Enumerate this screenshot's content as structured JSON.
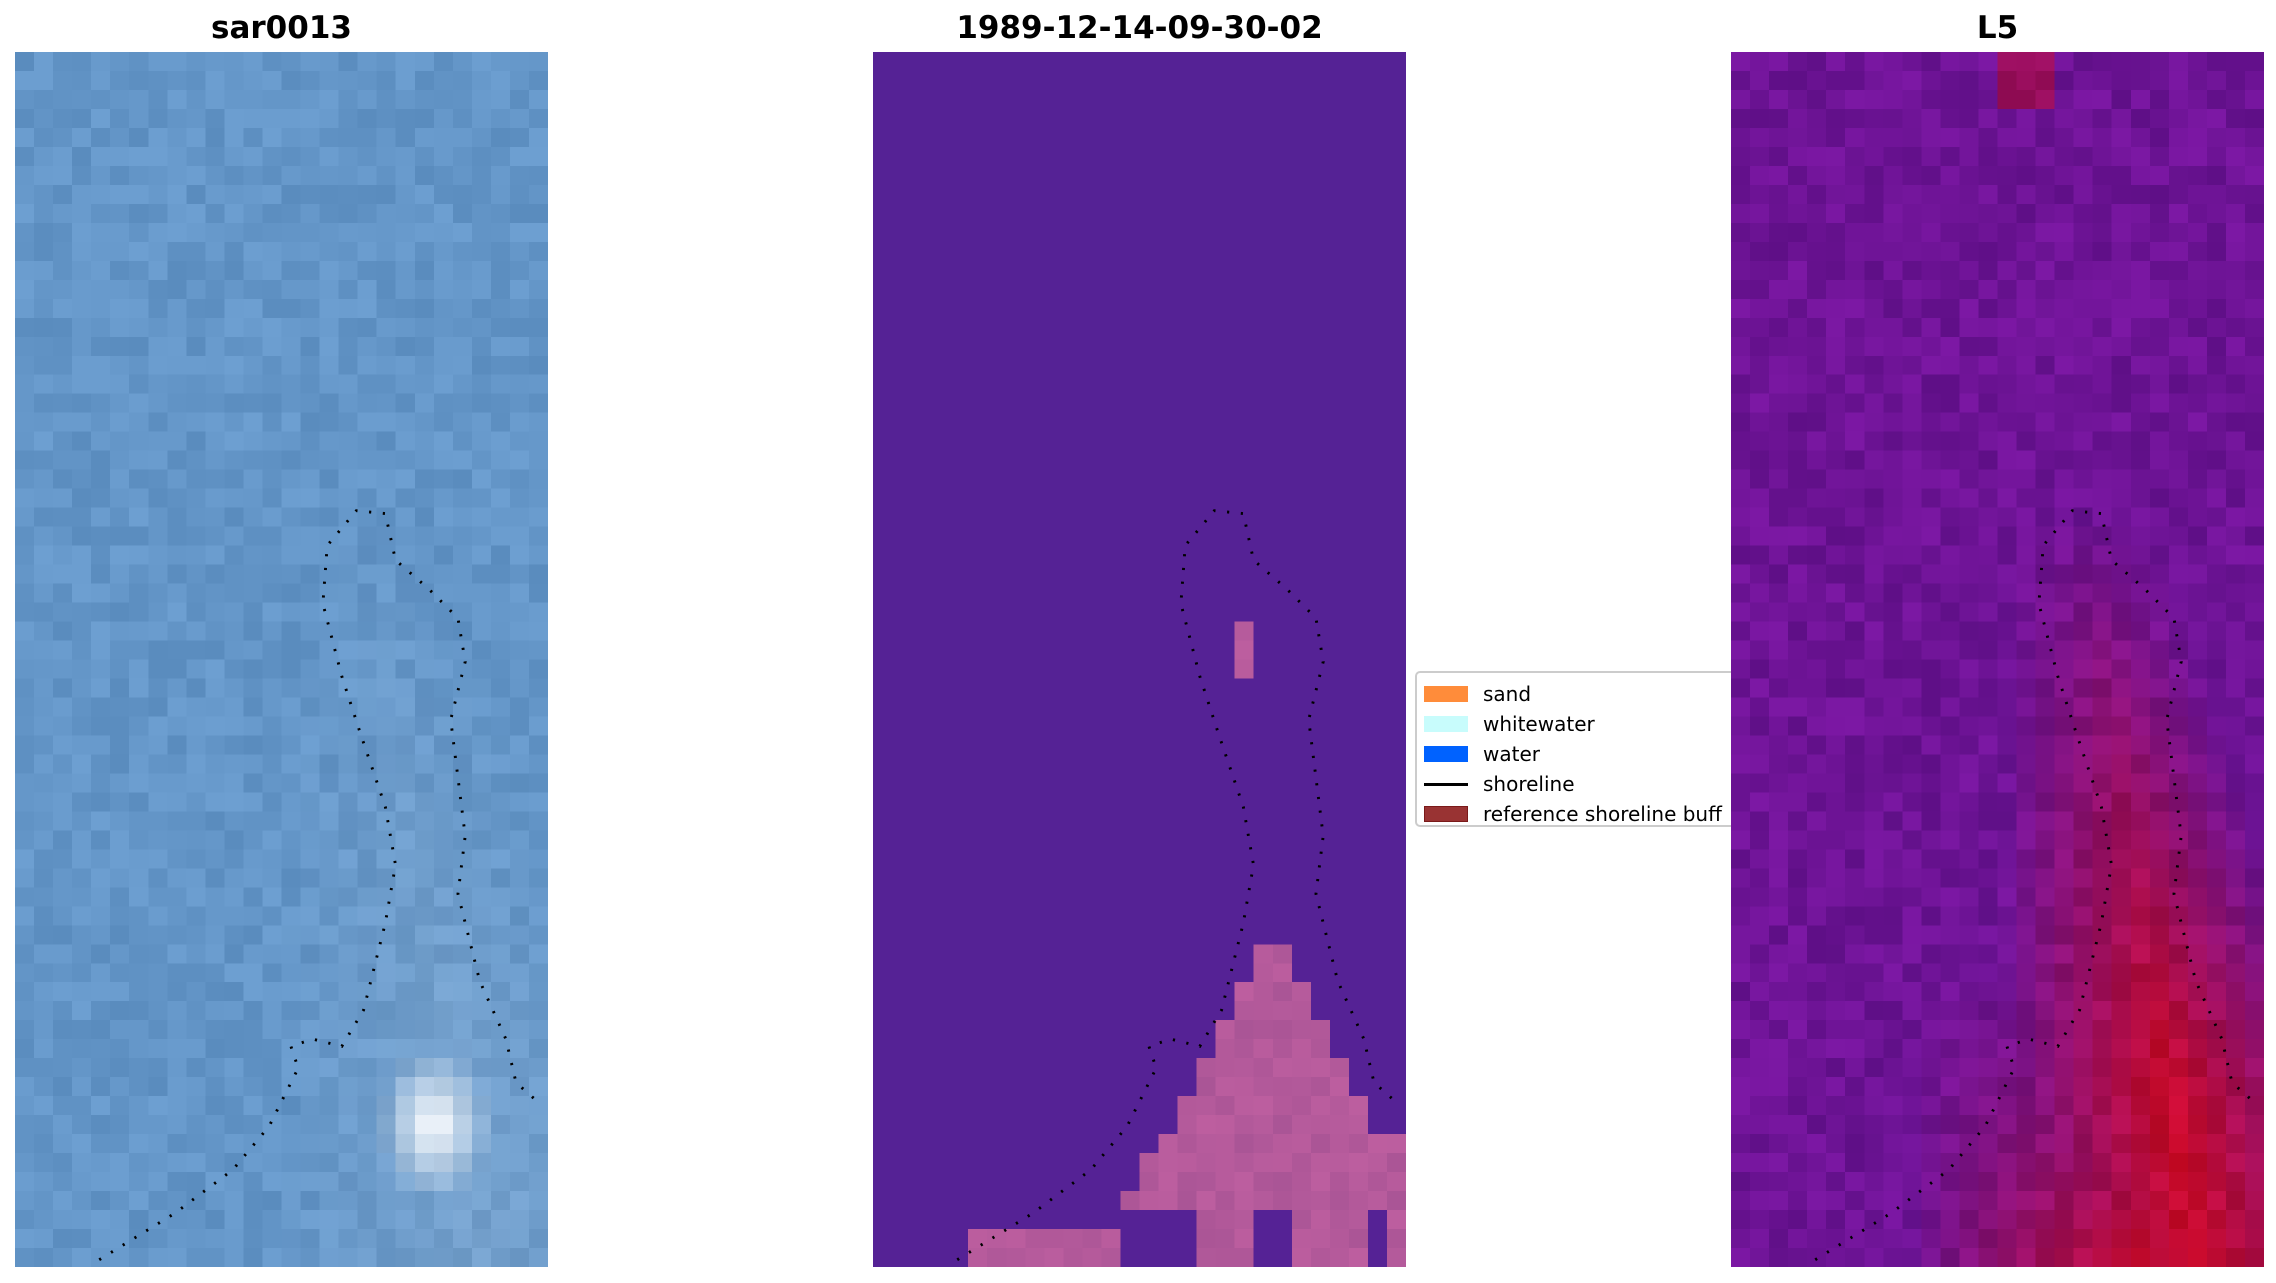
{
  "chart_data": [
    {
      "type": "heatmap",
      "title": "sar0013",
      "colormap": "blue-rgb composite",
      "shoreline_overlay": true
    },
    {
      "type": "heatmap",
      "title": "1989-12-14-09-30-02",
      "colormap": "classification",
      "background_color": "#552295",
      "highlight_color": "#c06a9c",
      "shoreline_overlay": true
    },
    {
      "type": "heatmap",
      "title": "L5",
      "colormap": "purple-to-crimson",
      "shoreline_overlay": true
    }
  ],
  "legend": {
    "placement": "center",
    "items": [
      {
        "label": "sand",
        "color": "#ff8c3a",
        "kind": "patch"
      },
      {
        "label": "whitewater",
        "color": "#c8fcfc",
        "kind": "patch"
      },
      {
        "label": "water",
        "color": "#0062ff",
        "kind": "patch"
      },
      {
        "label": "shoreline",
        "color": "#000000",
        "kind": "line"
      },
      {
        "label": "reference shoreline buff",
        "color": "#993333",
        "kind": "patch"
      }
    ]
  }
}
